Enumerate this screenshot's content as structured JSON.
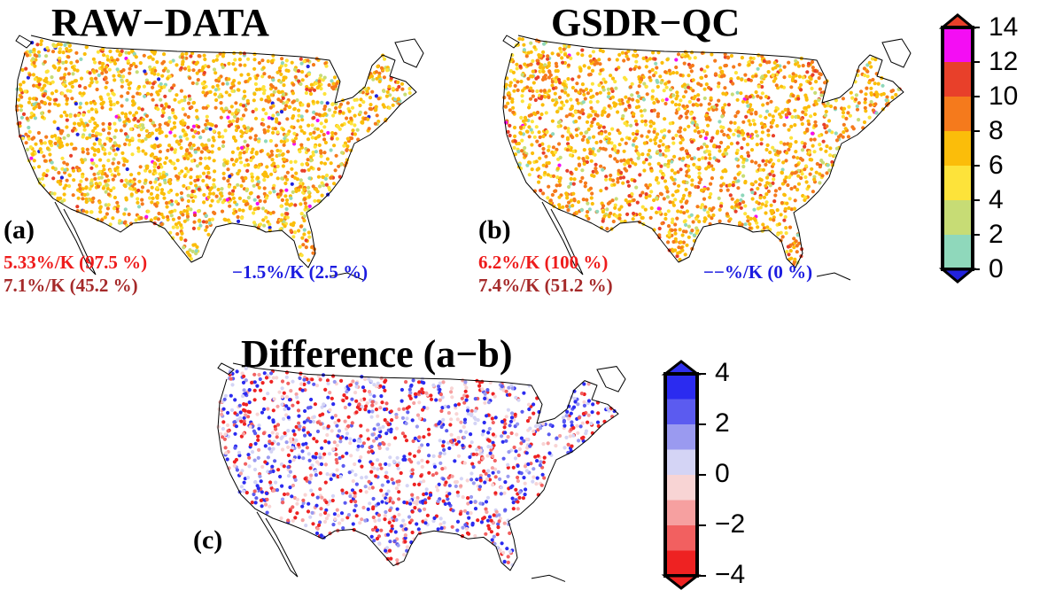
{
  "panels": [
    {
      "id": "a",
      "title": "RAW−DATA",
      "label": "(a)",
      "stats": {
        "red": "5.33%/K (97.5 %)",
        "brown": "7.1%/K (45.2 %)",
        "blue": "−1.5%/K (2.5 %)"
      }
    },
    {
      "id": "b",
      "title": "GSDR−QC",
      "label": "(b)",
      "stats": {
        "red": "6.2%/K (100 %)",
        "brown": "7.4%/K (51.2 %)",
        "blue": "−−%/K (0 %)"
      }
    },
    {
      "id": "c",
      "title": "Difference (a−b)",
      "label": "(c)"
    }
  ],
  "colorbar_main": {
    "ticks": [
      "14",
      "12",
      "10",
      "8",
      "6",
      "4",
      "2",
      "0"
    ],
    "colors": [
      "#f40df4",
      "#e8402a",
      "#f57a1c",
      "#fbbd0a",
      "#fde33a",
      "#c7dc75",
      "#8fd8bb"
    ],
    "over_color": "#e8402a",
    "under_color": "#2222dd"
  },
  "colorbar_diff": {
    "ticks": [
      "4",
      "2",
      "0",
      "−2",
      "−4"
    ],
    "colors": [
      "#2b2bf0",
      "#5b5bf0",
      "#9a9af0",
      "#d4d4f5",
      "#f8d4d4",
      "#f6a0a0",
      "#f26060",
      "#ee2222"
    ],
    "over_color": "#3030ee",
    "under_color": "#ee2222"
  },
  "stat_colors": {
    "red": "#ee1c1c",
    "brown": "#a52a2a",
    "blue": "#1c1ce0"
  }
}
